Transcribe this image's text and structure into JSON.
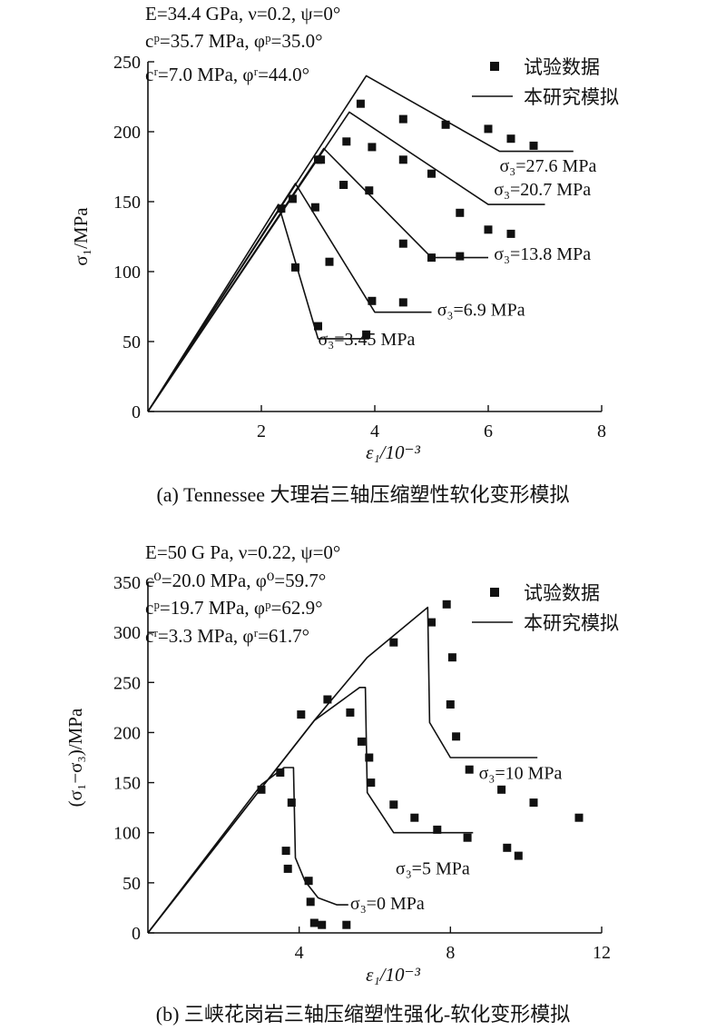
{
  "chart_data": [
    {
      "type": "scatter",
      "caption": "(a) Tennessee 大理岩三轴压缩塑性软化变形模拟",
      "params": [
        "E=34.4 GPa, ν=0.2, ψ=0°",
        "cᵖ=35.7 MPa, φᵖ=35.0°",
        "cʳ=7.0 MPa, φʳ=44.0°"
      ],
      "xlabel": "ε₁/10⁻³",
      "ylabel": "σ₁/MPa",
      "xlim": [
        0,
        8
      ],
      "ylim": [
        0,
        250
      ],
      "xticks": [
        2,
        4,
        6,
        8
      ],
      "yticks": [
        0,
        50,
        100,
        150,
        200,
        250
      ],
      "legend": {
        "placement": "top-right",
        "points_label": "试验数据",
        "line_label": "本研究模拟"
      },
      "series": [
        {
          "name": "σ₃=3.45 MPa",
          "sim": [
            [
              0,
              0
            ],
            [
              2.3,
              148
            ],
            [
              3.0,
              52
            ],
            [
              3.9,
              52
            ]
          ],
          "test": [
            [
              2.35,
              145
            ],
            [
              2.6,
              103
            ],
            [
              2.95,
              146
            ],
            [
              3.0,
              61
            ],
            [
              3.2,
              107
            ],
            [
              3.85,
              55
            ]
          ],
          "label_at": [
            3.0,
            52
          ]
        },
        {
          "name": "σ₃=6.9 MPa",
          "sim": [
            [
              0,
              0
            ],
            [
              2.6,
              163
            ],
            [
              4.0,
              71
            ],
            [
              5.0,
              71
            ]
          ],
          "test": [
            [
              2.55,
              152
            ],
            [
              3.0,
              180
            ],
            [
              3.45,
              162
            ],
            [
              3.9,
              158
            ],
            [
              3.95,
              79
            ],
            [
              4.5,
              78
            ]
          ],
          "label_at": [
            5.1,
            73
          ]
        },
        {
          "name": "σ₃=13.8 MPa",
          "sim": [
            [
              0,
              0
            ],
            [
              3.1,
              188
            ],
            [
              5.0,
              110
            ],
            [
              6.0,
              110
            ]
          ],
          "test": [
            [
              3.05,
              180
            ],
            [
              3.45,
              162
            ],
            [
              4.5,
              120
            ],
            [
              5.0,
              110
            ],
            [
              5.5,
              111
            ]
          ],
          "label_at": [
            6.1,
            113
          ]
        },
        {
          "name": "σ₃=20.7 MPa",
          "sim": [
            [
              0,
              0
            ],
            [
              3.55,
              214
            ],
            [
              6.0,
              148
            ],
            [
              7.0,
              148
            ]
          ],
          "test": [
            [
              3.5,
              193
            ],
            [
              3.95,
              189
            ],
            [
              4.5,
              180
            ],
            [
              5.0,
              170
            ],
            [
              5.5,
              142
            ],
            [
              6.0,
              130
            ],
            [
              6.4,
              127
            ]
          ],
          "label_at": [
            6.1,
            159
          ]
        },
        {
          "name": "σ₃=27.6 MPa",
          "sim": [
            [
              0,
              0
            ],
            [
              3.85,
              240
            ],
            [
              6.2,
              186
            ],
            [
              7.5,
              186
            ]
          ],
          "test": [
            [
              3.75,
              220
            ],
            [
              4.5,
              209
            ],
            [
              5.25,
              205
            ],
            [
              6.0,
              202
            ],
            [
              6.4,
              195
            ],
            [
              6.8,
              190
            ]
          ],
          "label_at": [
            6.2,
            176
          ]
        }
      ]
    },
    {
      "type": "scatter",
      "caption": "(b) 三峡花岗岩三轴压缩塑性强化-软化变形模拟",
      "params": [
        "E=50 G Pa, ν=0.22, ψ=0°",
        "c⁰=20.0 MPa, φ⁰=59.7°",
        "cᵖ=19.7 MPa, φᵖ=62.9°",
        "cʳ=3.3 MPa, φʳ=61.7°"
      ],
      "xlabel": "ε₁/10⁻³",
      "ylabel": "(σ₁−σ₃)/MPa",
      "xlim": [
        0,
        12
      ],
      "ylim": [
        0,
        350
      ],
      "xticks": [
        4,
        8,
        12
      ],
      "yticks": [
        0,
        50,
        100,
        150,
        200,
        250,
        300,
        350
      ],
      "legend": {
        "placement": "top-right",
        "points_label": "试验数据",
        "line_label": "本研究模拟"
      },
      "series": [
        {
          "name": "σ₃=0 MPa",
          "sim": [
            [
              0,
              0
            ],
            [
              3.0,
              148
            ],
            [
              3.6,
              165
            ],
            [
              3.85,
              165
            ],
            [
              3.9,
              75
            ],
            [
              4.15,
              52
            ],
            [
              4.5,
              35
            ],
            [
              5.0,
              28
            ],
            [
              5.3,
              28
            ]
          ],
          "test": [
            [
              3.0,
              143
            ],
            [
              3.5,
              160
            ],
            [
              3.65,
              82
            ],
            [
              3.7,
              64
            ],
            [
              3.8,
              130
            ],
            [
              4.25,
              52
            ],
            [
              4.3,
              31
            ],
            [
              4.4,
              10
            ],
            [
              4.6,
              8
            ],
            [
              5.25,
              8
            ]
          ],
          "label_at": [
            5.35,
            30
          ]
        },
        {
          "name": "σ₃=5 MPa",
          "sim": [
            [
              0,
              0
            ],
            [
              4.4,
              212
            ],
            [
              5.6,
              245
            ],
            [
              5.75,
              245
            ],
            [
              5.8,
              140
            ],
            [
              6.5,
              100
            ],
            [
              7.0,
              100
            ],
            [
              8.6,
              100
            ]
          ],
          "test": [
            [
              4.05,
              218
            ],
            [
              4.75,
              233
            ],
            [
              5.35,
              220
            ],
            [
              5.65,
              191
            ],
            [
              5.85,
              175
            ],
            [
              5.9,
              150
            ],
            [
              6.5,
              128
            ],
            [
              7.05,
              115
            ],
            [
              7.65,
              103
            ],
            [
              8.45,
              95
            ]
          ],
          "label_at": [
            6.55,
            65
          ]
        },
        {
          "name": "σ₃=10 MPa",
          "sim": [
            [
              0,
              0
            ],
            [
              4.4,
              212
            ],
            [
              5.8,
              275
            ],
            [
              7.4,
              325
            ],
            [
              7.45,
              210
            ],
            [
              8.0,
              175
            ],
            [
              10.3,
              175
            ]
          ],
          "test": [
            [
              6.5,
              290
            ],
            [
              7.5,
              310
            ],
            [
              7.9,
              328
            ],
            [
              8.0,
              228
            ],
            [
              8.05,
              275
            ],
            [
              8.15,
              196
            ],
            [
              8.5,
              163
            ],
            [
              9.35,
              143
            ],
            [
              9.5,
              85
            ],
            [
              9.8,
              77
            ],
            [
              10.2,
              130
            ],
            [
              11.4,
              115
            ]
          ],
          "label_at": [
            8.75,
            160
          ]
        }
      ]
    }
  ]
}
